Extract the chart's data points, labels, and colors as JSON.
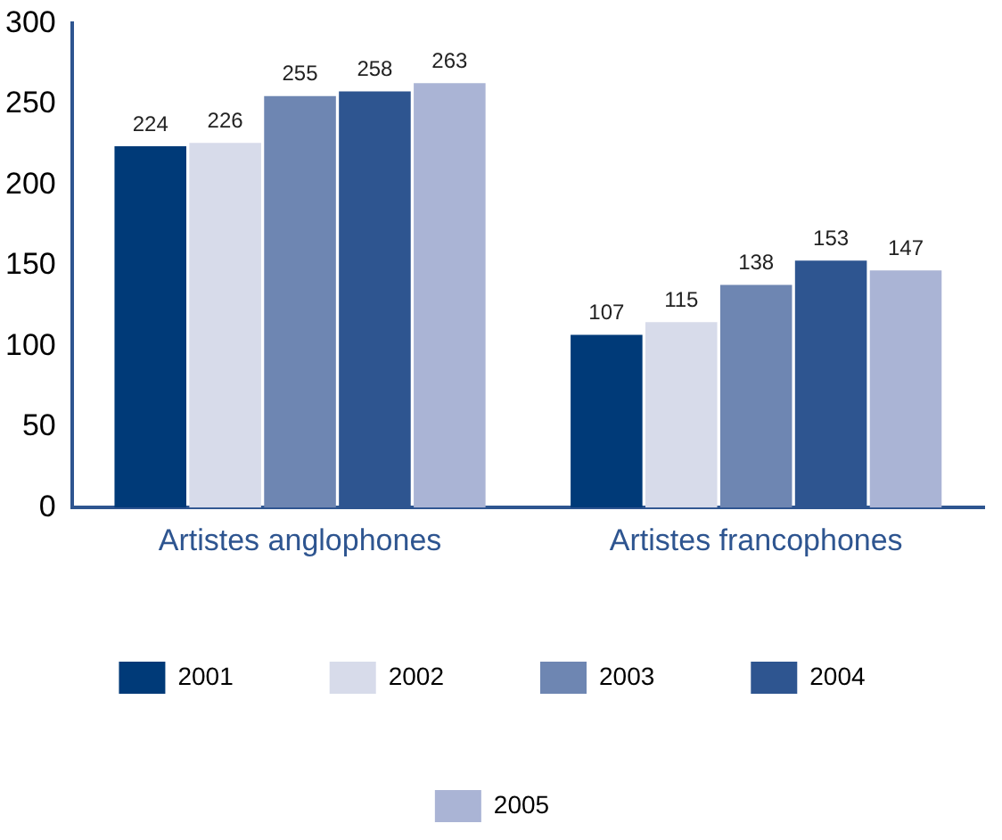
{
  "chart_data": {
    "type": "bar",
    "categories": [
      "Artistes anglophones",
      "Artistes francophones"
    ],
    "series": [
      {
        "name": "2001",
        "color": "#003a78",
        "values": [
          224,
          107
        ]
      },
      {
        "name": "2002",
        "color": "#d7dbea",
        "values": [
          226,
          115
        ]
      },
      {
        "name": "2003",
        "color": "#6e86b2",
        "values": [
          255,
          138
        ]
      },
      {
        "name": "2004",
        "color": "#2e5590",
        "values": [
          258,
          153
        ]
      },
      {
        "name": "2005",
        "color": "#aab4d5",
        "values": [
          263,
          147
        ]
      }
    ],
    "ylim": [
      0,
      300
    ],
    "yticks": [
      0,
      50,
      100,
      150,
      200,
      250,
      300
    ],
    "grid": false,
    "legend": "bottom",
    "data_labels": true
  }
}
